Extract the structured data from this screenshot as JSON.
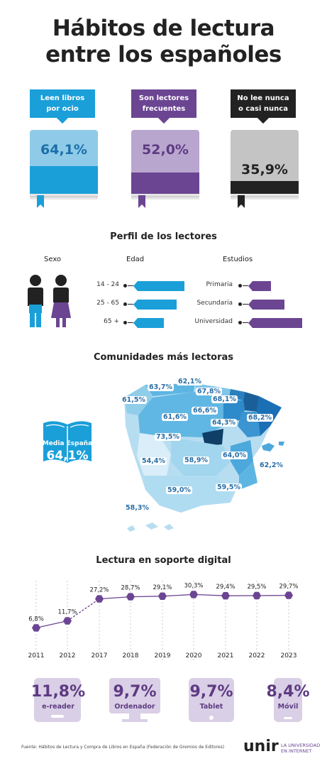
{
  "title_line1": "Hábitos de lectura",
  "title_line2": "entre los españoles",
  "top_stats": [
    {
      "label_line1": "Leen libros",
      "label_line2": "por ocio",
      "value": "64,1%",
      "fraction": 0.641,
      "color": "#1a9fd9"
    },
    {
      "label_line1": "Son lectores",
      "label_line2": "frecuentes",
      "value": "52,0%",
      "fraction": 0.52,
      "color": "#6b4592"
    },
    {
      "label_line1": "No lee nunca",
      "label_line2": "o casi nunca",
      "value": "35,9%",
      "fraction": 0.359,
      "color": "#222222"
    }
  ],
  "profile": {
    "title": "Perfil de los lectores",
    "sex_label": "Sexo",
    "age_label": "Edad",
    "studies_label": "Estudios",
    "age_groups": [
      {
        "label": "14 - 24",
        "fraction": 1.0
      },
      {
        "label": "25 - 65",
        "fraction": 0.85
      },
      {
        "label": "65 +",
        "fraction": 0.6
      }
    ],
    "studies": [
      {
        "label": "Primaria",
        "fraction": 0.4
      },
      {
        "label": "Secundaria",
        "fraction": 0.64
      },
      {
        "label": "Universidad",
        "fraction": 0.95
      }
    ],
    "blue": "#1a9fd9",
    "purple": "#6b4592"
  },
  "communities": {
    "title": "Comunidades más lectoras",
    "average_label": "Media España",
    "average_value": "64,1%",
    "values": [
      "62,1%",
      "63,7%",
      "67,8%",
      "61,5%",
      "68,1%",
      "66,6%",
      "68,2%",
      "61,6%",
      "64,3%",
      "73,5%",
      "54,4%",
      "58,9%",
      "64,0%",
      "62,2%",
      "59,0%",
      "59,5%",
      "58,3%"
    ]
  },
  "chart_data": {
    "type": "line",
    "title": "Lectura en soporte digital",
    "x": [
      "2011",
      "2012",
      "2017",
      "2018",
      "2019",
      "2020",
      "2021",
      "2022",
      "2023"
    ],
    "values": [
      6.8,
      11.7,
      27.2,
      28.7,
      29.1,
      30.3,
      29.4,
      29.5,
      29.7
    ],
    "value_labels": [
      "6,8%",
      "11,7%",
      "27,2%",
      "28,7%",
      "29,1%",
      "30,3%",
      "29,4%",
      "29,5%",
      "29,7%"
    ],
    "color": "#6b4592",
    "grid": "vertical dashed"
  },
  "devices": [
    {
      "value": "11,8%",
      "label": "e-reader",
      "icon": "e-reader-icon"
    },
    {
      "value": "9,7%",
      "label": "Ordenador",
      "icon": "computer-icon"
    },
    {
      "value": "9,7%",
      "label": "Tablet",
      "icon": "tablet-icon"
    },
    {
      "value": "8,4%",
      "label": "Móvil",
      "icon": "mobile-icon"
    }
  ],
  "footer": {
    "source": "Fuente: Hábitos de Lectura y Compra de Libros en España (Federación de Gremios de Editores)",
    "brand": "unir",
    "brand_tag_line1": "LA UNIVERSIDAD",
    "brand_tag_line2": "EN INTERNET"
  }
}
